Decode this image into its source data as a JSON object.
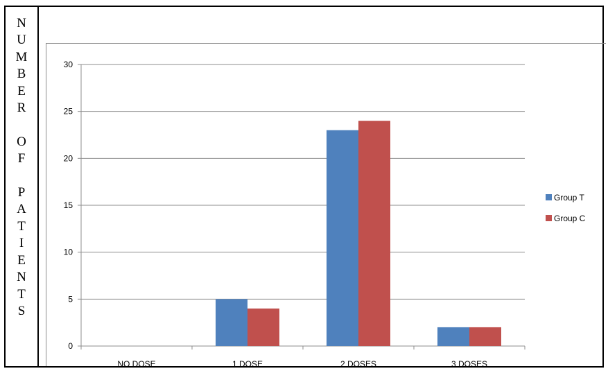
{
  "chart_data": {
    "type": "bar",
    "ylabel": "NUMBER OF PATIENTS",
    "categories": [
      "NO DOSE",
      "1 DOSE",
      "2 DOSES",
      "3 DOSES"
    ],
    "series": [
      {
        "name": "Group T",
        "color": "#4f81bd",
        "values": [
          0,
          5,
          23,
          2
        ]
      },
      {
        "name": "Group C",
        "color": "#c0504d",
        "values": [
          0,
          4,
          24,
          2
        ]
      }
    ],
    "ylim": [
      0,
      30
    ],
    "yticks": [
      0,
      5,
      10,
      15,
      20,
      25,
      30
    ],
    "grid": true,
    "legend": "right"
  }
}
